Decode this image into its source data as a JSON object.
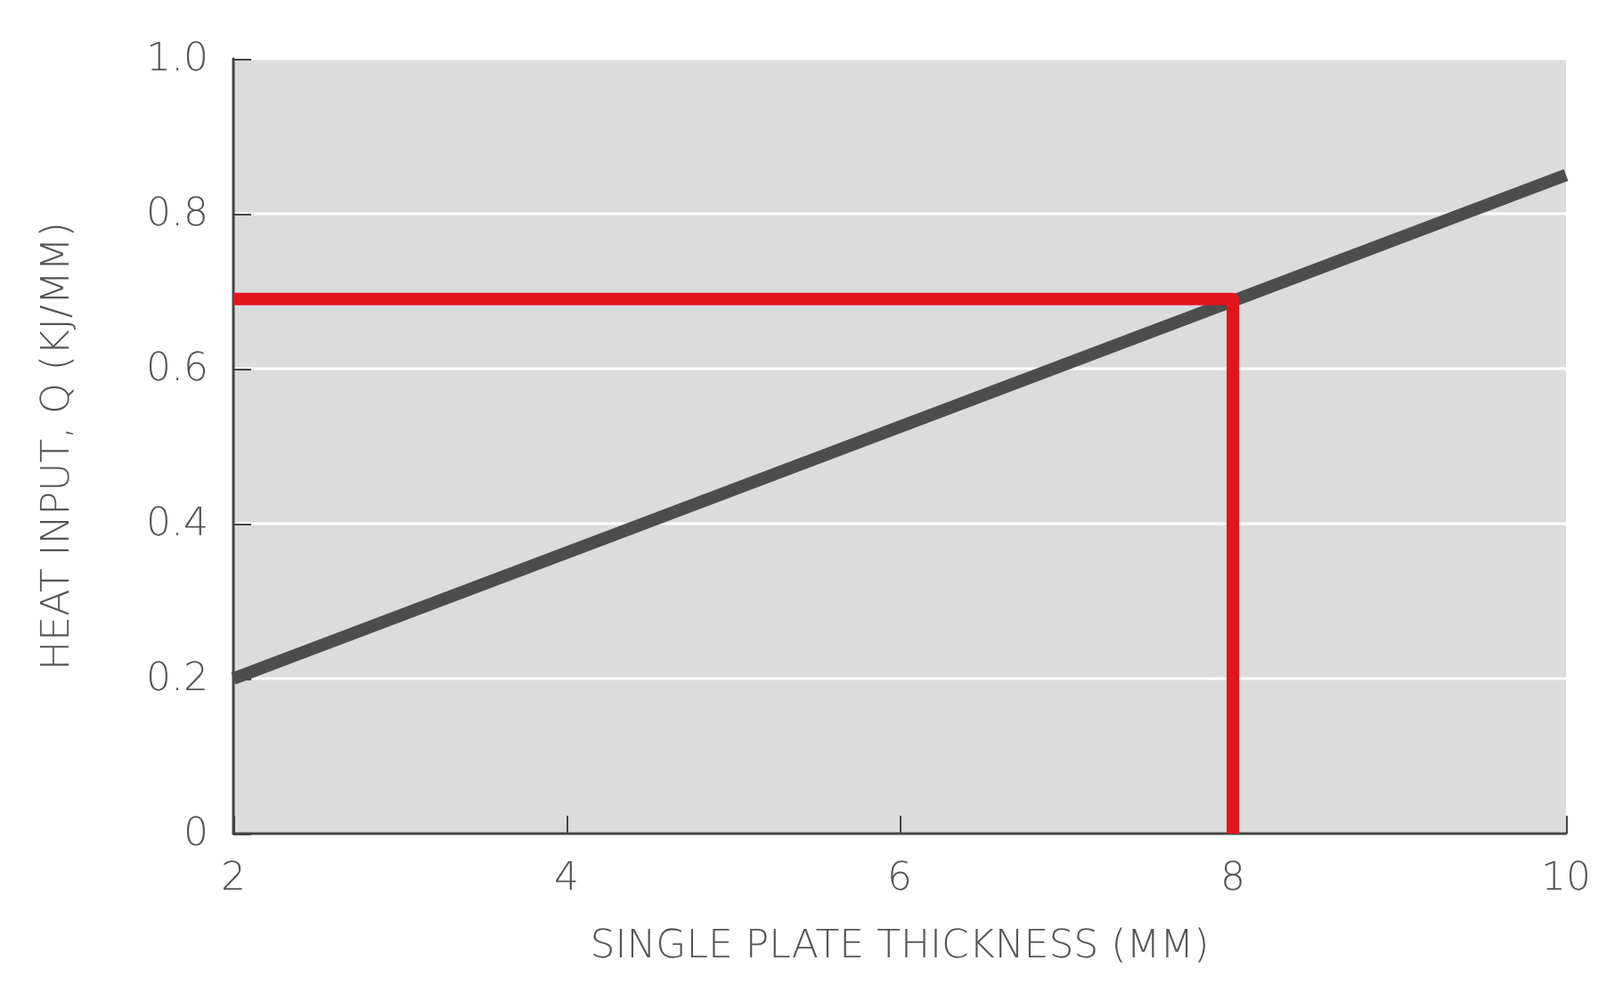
{
  "chart_data": {
    "type": "line",
    "xlabel": "SINGLE PLATE THICKNESS (MM)",
    "ylabel": "HEAT INPUT, Q (KJ/MM)",
    "xlim": [
      2,
      10
    ],
    "xticks": [
      2,
      4,
      6,
      8,
      10
    ],
    "ylim": [
      0,
      1
    ],
    "yticks": [
      0,
      0.2,
      0.4,
      0.6,
      0.8,
      {
        "value": 1,
        "label": "1.0"
      }
    ],
    "grid": "y",
    "marker": "none",
    "line_style": "solid",
    "series": [
      {
        "color": "#4d4d4d",
        "x": [
          2,
          10
        ],
        "values": [
          0.2,
          0.85
        ]
      },
      {
        "color": "#e3151f",
        "x": [
          2,
          8,
          8
        ],
        "values": [
          0.69,
          0.69,
          0
        ]
      }
    ]
  }
}
